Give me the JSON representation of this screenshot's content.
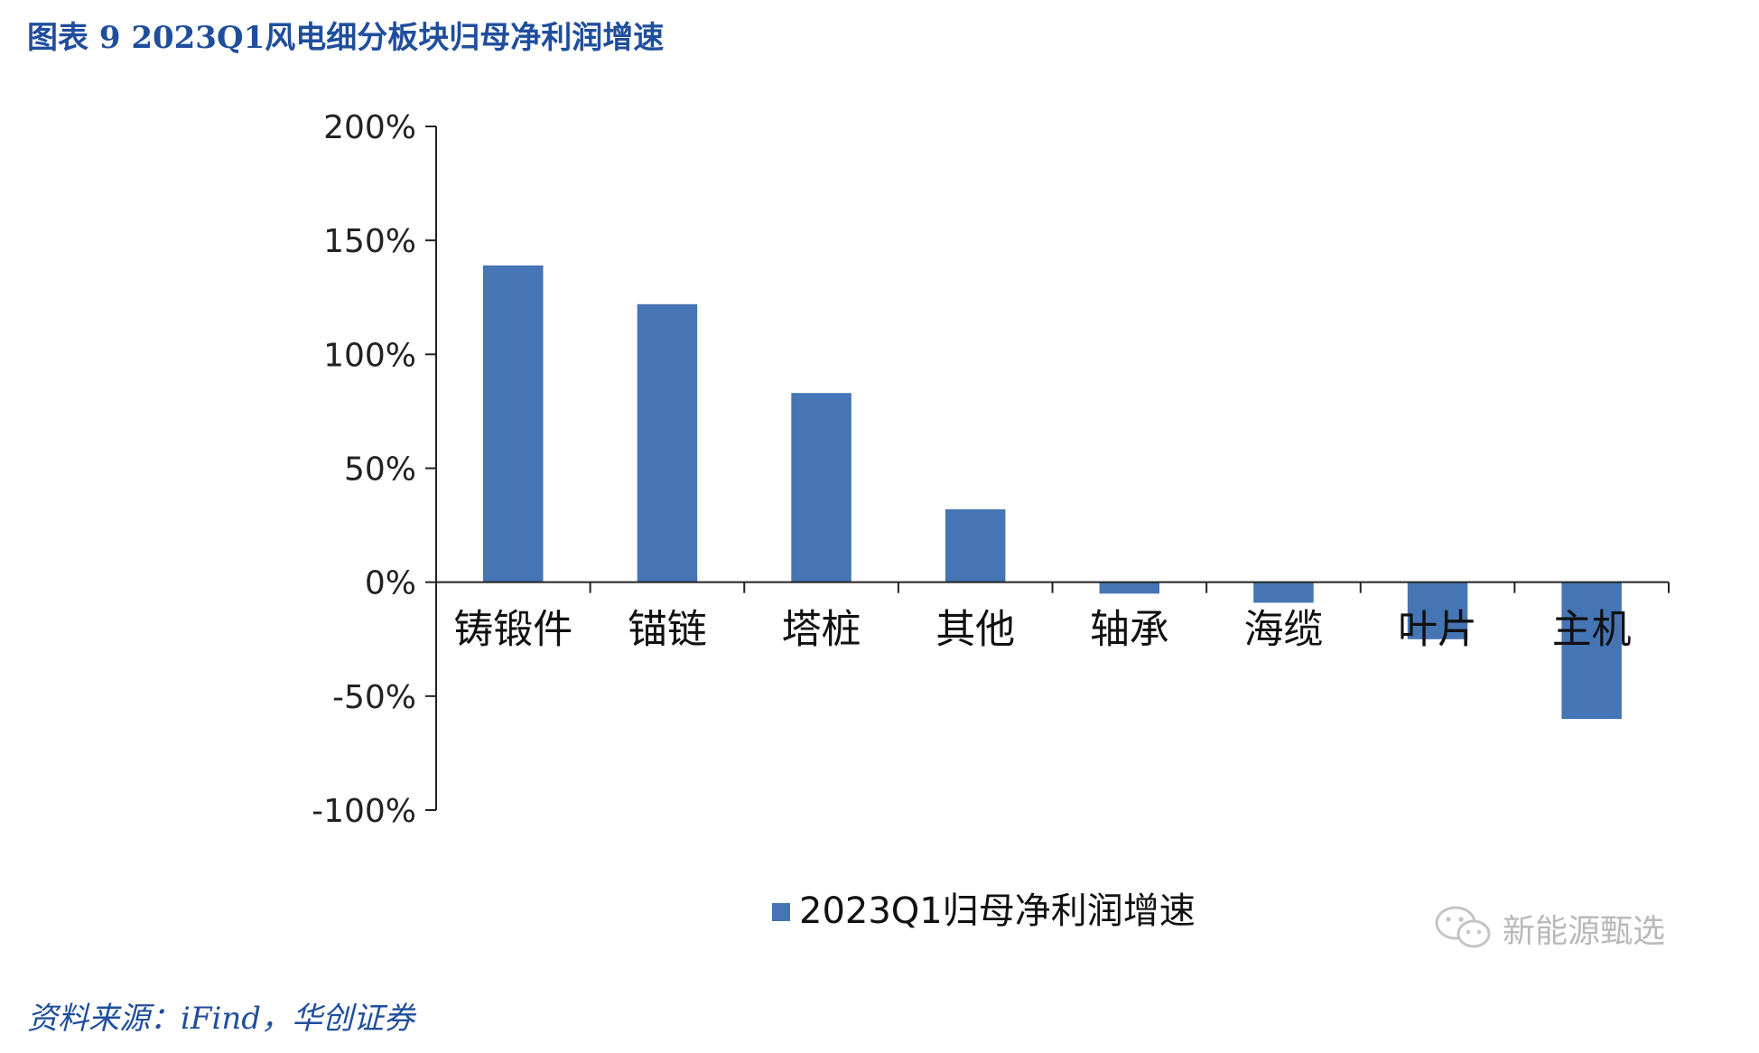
{
  "figure": {
    "title": "图表 9  2023Q1风电细分板块归母净利润增速",
    "source": "资料来源：iFind，华创证券",
    "watermark_text": "新能源甄选",
    "watermark_icon": "wechat-icon"
  },
  "chart_data": {
    "type": "bar",
    "categories": [
      "铸锻件",
      "锚链",
      "塔桩",
      "其他",
      "轴承",
      "海缆",
      "叶片",
      "主机"
    ],
    "series": [
      {
        "name": "2023Q1归母净利润增速",
        "color": "#4575b4",
        "values": [
          139,
          122,
          83,
          32,
          -5,
          -9,
          -25,
          -60
        ]
      }
    ],
    "ylim": [
      -100,
      200
    ],
    "yticks": [
      200,
      150,
      100,
      50,
      0,
      -50,
      -100
    ],
    "ytick_labels": [
      "200%",
      "150%",
      "100%",
      "50%",
      "0%",
      "-50%",
      "-100%"
    ],
    "title": "",
    "xlabel": "",
    "ylabel": "",
    "grid": false,
    "legend_position": "bottom-center"
  }
}
